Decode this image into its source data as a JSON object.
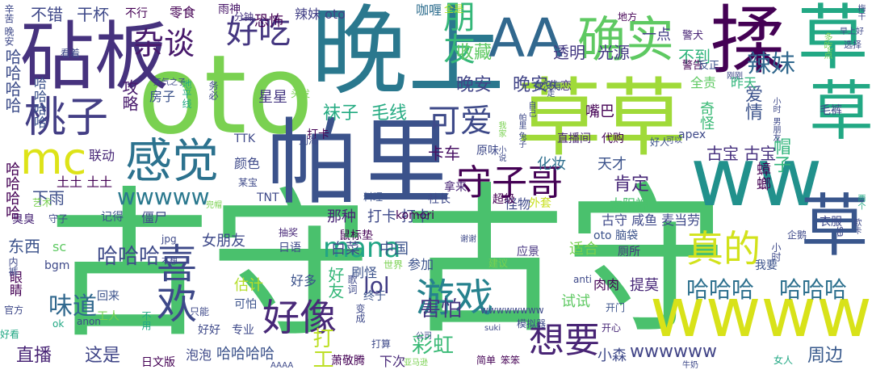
{
  "words": [
    {
      "text": "古守",
      "color": "#4ac16d"
    },
    {
      "text": "古守",
      "color": "#4ac16d"
    },
    {
      "text": "晚上",
      "color": "#2a788e"
    },
    {
      "text": "oto",
      "color": "#7ad151"
    },
    {
      "text": "帕里",
      "color": "#3b528b"
    },
    {
      "text": "草草",
      "color": "#a0da39"
    },
    {
      "text": "砧板",
      "color": "#46327e"
    },
    {
      "text": "ww",
      "color": "#21918c"
    },
    {
      "text": "wwww",
      "color": "#d8e219"
    },
    {
      "text": "AA",
      "color": "#31688e"
    },
    {
      "text": "确实",
      "color": "#5ec962"
    },
    {
      "text": "揉",
      "color": "#440154"
    },
    {
      "text": "草",
      "color": "#22a884"
    },
    {
      "text": "草",
      "color": "#22a884"
    },
    {
      "text": "草",
      "color": "#39568c"
    },
    {
      "text": "感觉",
      "color": "#2c728e"
    },
    {
      "text": "桃子",
      "color": "#433e85"
    },
    {
      "text": "喜欢",
      "color": "#3e4989"
    },
    {
      "text": "mc",
      "color": "#dde318"
    },
    {
      "text": "好像",
      "color": "#482878"
    },
    {
      "text": "游戏",
      "color": "#26828e"
    },
    {
      "text": "守子哥",
      "color": "#440154"
    },
    {
      "text": "真的",
      "color": "#d2e21b"
    },
    {
      "text": "想要",
      "color": "#482475"
    },
    {
      "text": "杂谈",
      "color": "#481a6c"
    },
    {
      "text": "好吃",
      "color": "#453781"
    },
    {
      "text": "朋友",
      "color": "#35b779"
    },
    {
      "text": "可爱",
      "color": "#3e4a89"
    },
    {
      "text": "晚安",
      "color": "#414487"
    },
    {
      "text": "晚安",
      "color": "#414487"
    },
    {
      "text": "辣妹",
      "color": "#31688e"
    },
    {
      "text": "爱情",
      "color": "#3b528b"
    },
    {
      "text": "哈哈哈",
      "color": "#2d708e"
    },
    {
      "text": "哈哈哈",
      "color": "#2d708e"
    },
    {
      "text": "哈哈哈",
      "color": "#3e4a89"
    },
    {
      "text": "wwwww",
      "color": "#2a788e"
    },
    {
      "text": "wwwwww",
      "color": "#414487"
    },
    {
      "text": "mana",
      "color": "#21a585"
    },
    {
      "text": "lol",
      "color": "#433e85"
    },
    {
      "text": "味道",
      "color": "#31688e"
    },
    {
      "text": "彩虹",
      "color": "#3aba76"
    },
    {
      "text": "打工",
      "color": "#bddf26"
    },
    {
      "text": "周边",
      "color": "#38598c"
    },
    {
      "text": "直播",
      "color": "#482475"
    },
    {
      "text": "这是",
      "color": "#404688"
    },
    {
      "text": "害怕",
      "color": "#453781"
    },
    {
      "text": "肯定",
      "color": "#482878"
    },
    {
      "text": "古宝 古宝",
      "color": "#46307e"
    },
    {
      "text": "帽子",
      "color": "#31b57b"
    },
    {
      "text": "哈哈哈哈",
      "color": "#3d4d8a"
    },
    {
      "text": "好友",
      "color": "#35b779"
    },
    {
      "text": "蟑螂",
      "color": "#440154"
    },
    {
      "text": "收藏",
      "color": "#5ec962"
    },
    {
      "text": "透明",
      "color": "#443a83"
    },
    {
      "text": "光源",
      "color": "#443a83"
    },
    {
      "text": "不到",
      "color": "#2fb47c"
    },
    {
      "text": "恐怖",
      "color": "#440154"
    },
    {
      "text": "辣妹 oto",
      "color": "#424086"
    },
    {
      "text": "袜子",
      "color": "#25ab82"
    },
    {
      "text": "毛线",
      "color": "#25ab82"
    },
    {
      "text": "卡车",
      "color": "#471063"
    },
    {
      "text": "不错",
      "color": "#3f4889"
    },
    {
      "text": "干杯",
      "color": "#3e4989"
    },
    {
      "text": "不行",
      "color": "#440154"
    },
    {
      "text": "零食",
      "color": "#440154"
    },
    {
      "text": "雨神",
      "color": "#481769"
    },
    {
      "text": "分钟",
      "color": "#463480"
    },
    {
      "text": "咖喱",
      "color": "#2e6e8e"
    },
    {
      "text": "一点",
      "color": "#423f85"
    },
    {
      "text": "攻略",
      "color": "#481b6d"
    },
    {
      "text": "房子",
      "color": "#3b528b"
    },
    {
      "text": "星星",
      "color": "#453781"
    },
    {
      "text": "打卡",
      "color": "#440154"
    },
    {
      "text": "联动",
      "color": "#482878"
    },
    {
      "text": "颜色",
      "color": "#3e4989"
    },
    {
      "text": "下雨",
      "color": "#3d4e8a"
    },
    {
      "text": "嘴巴",
      "color": "#440154"
    },
    {
      "text": "奇怪",
      "color": "#3aba76"
    },
    {
      "text": "天才",
      "color": "#3b528b"
    },
    {
      "text": "化妆",
      "color": "#2e6f8e"
    },
    {
      "text": "直播间",
      "color": "#482475"
    },
    {
      "text": "代购",
      "color": "#440154"
    },
    {
      "text": "失恋",
      "color": "#46337e"
    },
    {
      "text": "全责",
      "color": "#5ec962"
    },
    {
      "text": "昨天",
      "color": "#31b57b"
    },
    {
      "text": "警告",
      "color": "#440154"
    },
    {
      "text": "警犬",
      "color": "#482475"
    },
    {
      "text": "反正",
      "color": "#3b528b"
    },
    {
      "text": "打卡 打卡",
      "color": "#3e4989"
    },
    {
      "text": "那种",
      "color": "#482475"
    },
    {
      "text": "怪物",
      "color": "#3e4989"
    },
    {
      "text": "太阳神",
      "color": "#4ac16d"
    },
    {
      "text": "古守 咸鱼 麦当劳",
      "color": "#3e4989"
    },
    {
      "text": "oto 脑袋",
      "color": "#3b528b"
    },
    {
      "text": "中国",
      "color": "#3b528b"
    },
    {
      "text": "适合",
      "color": "#7ad151"
    },
    {
      "text": "应景",
      "color": "#463480"
    },
    {
      "text": "厕所",
      "color": "#46307e"
    },
    {
      "text": "刷怪",
      "color": "#3b528b"
    },
    {
      "text": "参加",
      "color": "#3b528b"
    },
    {
      "text": "好多",
      "color": "#3b528b"
    },
    {
      "text": "终于",
      "color": "#3b528b"
    },
    {
      "text": "肉肉",
      "color": "#440154"
    },
    {
      "text": "提莫",
      "color": "#482878"
    },
    {
      "text": "试试",
      "color": "#5ec962"
    },
    {
      "text": "开门",
      "color": "#3b528b"
    },
    {
      "text": "开心",
      "color": "#482878"
    },
    {
      "text": "东西",
      "color": "#3b528b"
    },
    {
      "text": "女朋友",
      "color": "#3e4989"
    },
    {
      "text": "臭臭",
      "color": "#482475"
    },
    {
      "text": "僵尸",
      "color": "#3e4989"
    },
    {
      "text": "记得",
      "color": "#3b528b"
    },
    {
      "text": "守子",
      "color": "#3e4989"
    },
    {
      "text": "眼睛",
      "color": "#440154"
    },
    {
      "text": "回来",
      "color": "#3b528b"
    },
    {
      "text": "工人",
      "color": "#7ad151"
    },
    {
      "text": "估计",
      "color": "#b5de2b"
    },
    {
      "text": "可怕",
      "color": "#3b528b"
    },
    {
      "text": "好好",
      "color": "#3e4989"
    },
    {
      "text": "专业",
      "color": "#3e4989"
    },
    {
      "text": "泡泡",
      "color": "#3e4989"
    },
    {
      "text": "哈哈哈哈",
      "color": "#3b528b"
    },
    {
      "text": "日文版",
      "color": "#440154"
    },
    {
      "text": "简单",
      "color": "#440154"
    },
    {
      "text": "笨笨",
      "color": "#440154"
    },
    {
      "text": "萧敬腾",
      "color": "#440154"
    },
    {
      "text": "下次",
      "color": "#482878"
    },
    {
      "text": "小森",
      "color": "#3e4989"
    },
    {
      "text": "女人",
      "color": "#22a884"
    },
    {
      "text": "拿来",
      "color": "#482475"
    },
    {
      "text": "社长",
      "color": "#3e4989"
    },
    {
      "text": "超级",
      "color": "#440154"
    },
    {
      "text": "外套",
      "color": "#c8e020"
    },
    {
      "text": "komori",
      "color": "#440154"
    },
    {
      "text": "料理",
      "color": "#3b528b"
    },
    {
      "text": "原味",
      "color": "#3e4989"
    },
    {
      "text": "TTK",
      "color": "#3e4989"
    },
    {
      "text": "TNT",
      "color": "#3e4989"
    },
    {
      "text": "apex",
      "color": "#3e4989"
    },
    {
      "text": "wwwwwwww",
      "color": "#3e4989"
    },
    {
      "text": "bgm",
      "color": "#3e4989"
    },
    {
      "text": "sc",
      "color": "#5ec962"
    },
    {
      "text": "jpg",
      "color": "#3e4989"
    },
    {
      "text": "日语",
      "color": "#3e4989"
    },
    {
      "text": "抽奖",
      "color": "#482878"
    },
    {
      "text": "艺术",
      "color": "#7ad151"
    },
    {
      "text": "某宝",
      "color": "#3e4989"
    },
    {
      "text": "刘海",
      "color": "#3e4989"
    },
    {
      "text": "头发",
      "color": "#7ad151"
    },
    {
      "text": "有没有",
      "color": "#3b528b"
    },
    {
      "text": "好人",
      "color": "#3b528b"
    },
    {
      "text": "衣服",
      "color": "#3e4989"
    },
    {
      "text": "我要",
      "color": "#3b528b"
    },
    {
      "text": "小时",
      "color": "#3e4989"
    },
    {
      "text": "毛裤",
      "color": "#3e4989"
    },
    {
      "text": "土土 土土",
      "color": "#440154"
    },
    {
      "text": "全是",
      "color": "#b5de2b"
    },
    {
      "text": "地方",
      "color": "#440154"
    },
    {
      "text": "看着",
      "color": "#3e4989"
    },
    {
      "text": "辛苦 晚安",
      "color": "#3e4989"
    },
    {
      "text": "只能",
      "color": "#3e4989"
    },
    {
      "text": "不用",
      "color": "#22a884"
    },
    {
      "text": "anon",
      "color": "#3e4989"
    },
    {
      "text": "ok",
      "color": "#22a884"
    },
    {
      "text": "anti",
      "color": "#3e4989"
    },
    {
      "text": "好看",
      "color": "#22a884"
    },
    {
      "text": "官方",
      "color": "#3e4989"
    },
    {
      "text": "内裤",
      "color": "#3e4989"
    },
    {
      "text": "变成",
      "color": "#3e4989"
    },
    {
      "text": "打算",
      "color": "#3e4989"
    },
    {
      "text": "世界",
      "color": "#7ad151"
    },
    {
      "text": "歌词",
      "color": "#3e4989"
    },
    {
      "text": "模拟器",
      "color": "#3e4989"
    },
    {
      "text": "不想",
      "color": "#3e4989"
    },
    {
      "text": "兜帽",
      "color": "#7ad151"
    },
    {
      "text": "务必",
      "color": "#3e4989"
    },
    {
      "text": "地平线",
      "color": "#22a884"
    },
    {
      "text": "天气之子",
      "color": "#3e4989"
    },
    {
      "text": "多吃点",
      "color": "#7ad151"
    },
    {
      "text": "选择",
      "color": "#3e4989"
    },
    {
      "text": "刚刚",
      "color": "#3e4989"
    },
    {
      "text": "梅干",
      "color": "#3e4989"
    },
    {
      "text": "早上好",
      "color": "#3e4989"
    },
    {
      "text": "两个",
      "color": "#22a884"
    },
    {
      "text": "小时",
      "color": "#3e4989"
    },
    {
      "text": "男朋友",
      "color": "#3e4989"
    },
    {
      "text": "白菜",
      "color": "#3e4989"
    },
    {
      "text": "鼠标垫",
      "color": "#440154"
    },
    {
      "text": "建议",
      "color": "#7ad151"
    },
    {
      "text": "可以",
      "color": "#3e4989"
    },
    {
      "text": "suki",
      "color": "#3e4989"
    },
    {
      "text": "谢谢",
      "color": "#3e4989"
    },
    {
      "text": "sa",
      "color": "#3e4989"
    },
    {
      "text": "企鹅",
      "color": "#3e4989"
    },
    {
      "text": "欧卡",
      "color": "#3e4989"
    },
    {
      "text": "牛奶",
      "color": "#3e4989"
    },
    {
      "text": "AAAA",
      "color": "#3e4989"
    },
    {
      "text": "亚马逊",
      "color": "#7ad151"
    },
    {
      "text": "不走",
      "color": "#3e4989"
    },
    {
      "text": "小说",
      "color": "#3e4989"
    },
    {
      "text": "帕里 兔子",
      "color": "#3e4989"
    },
    {
      "text": "自己",
      "color": "#3e4989"
    },
    {
      "text": "公司",
      "color": "#3e4989"
    },
    {
      "text": "我家",
      "color": "#7ad151"
    },
    {
      "text": "哈哈哈哈",
      "color": "#440154"
    },
    {
      "text": "哈哈哈哈",
      "color": "#3b528b"
    }
  ]
}
